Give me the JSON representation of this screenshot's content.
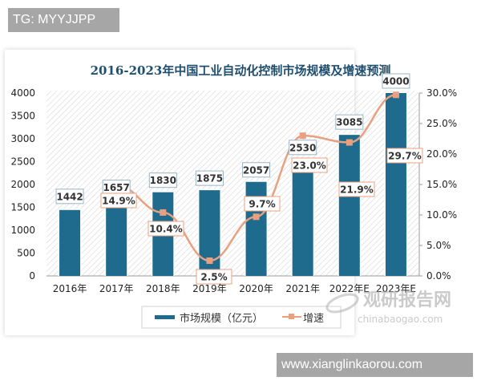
{
  "watermarks": {
    "top": "TG: MYYJJPP",
    "bottom": "www.xianglinkaorou.com",
    "logo_cn": "观研报告网",
    "logo_en": "chinabaogao.com"
  },
  "colors": {
    "bar": "#1f6b8e",
    "line": "#e8a080",
    "title": "#1f4e6e",
    "axis": "#999999",
    "hatch": "#d9d9d9"
  },
  "chart_data": {
    "type": "bar+line",
    "title": "2016-2023年中国工业自动化控制市场规模及增速预测",
    "categories": [
      "2016年",
      "2017年",
      "2018年",
      "2019年",
      "2020年",
      "2021年",
      "2022年E",
      "2023年E"
    ],
    "series": [
      {
        "name": "市场规模（亿元）",
        "type": "bar",
        "axis": "left",
        "values": [
          1442,
          1657,
          1830,
          1875,
          2057,
          2530,
          3085,
          4000
        ],
        "labels": [
          "1442",
          "1657",
          "1830",
          "1875",
          "2057",
          "2530",
          "3085",
          "4000"
        ]
      },
      {
        "name": "增速",
        "type": "line",
        "axis": "right",
        "values": [
          null,
          14.9,
          10.4,
          2.5,
          9.7,
          23.0,
          21.9,
          29.7
        ],
        "labels": [
          "",
          "14.9%",
          "10.4%",
          "2.5%",
          "9.7%",
          "23.0%",
          "21.9%",
          "29.7%"
        ]
      }
    ],
    "ylabel_left": "",
    "ylabel_right": "",
    "xlabel": "",
    "ylim_left": [
      0,
      4000
    ],
    "ylim_right": [
      0,
      30
    ],
    "yticks_left": [
      "0",
      "500",
      "1000",
      "1500",
      "2000",
      "2500",
      "3000",
      "3500",
      "4000"
    ],
    "yticks_right": [
      "0.0%",
      "5.0%",
      "10.0%",
      "15.0%",
      "20.0%",
      "25.0%",
      "30.0%"
    ],
    "legend": [
      "市场规模（亿元）",
      "增速"
    ],
    "legend_position": "bottom",
    "grid": false
  }
}
